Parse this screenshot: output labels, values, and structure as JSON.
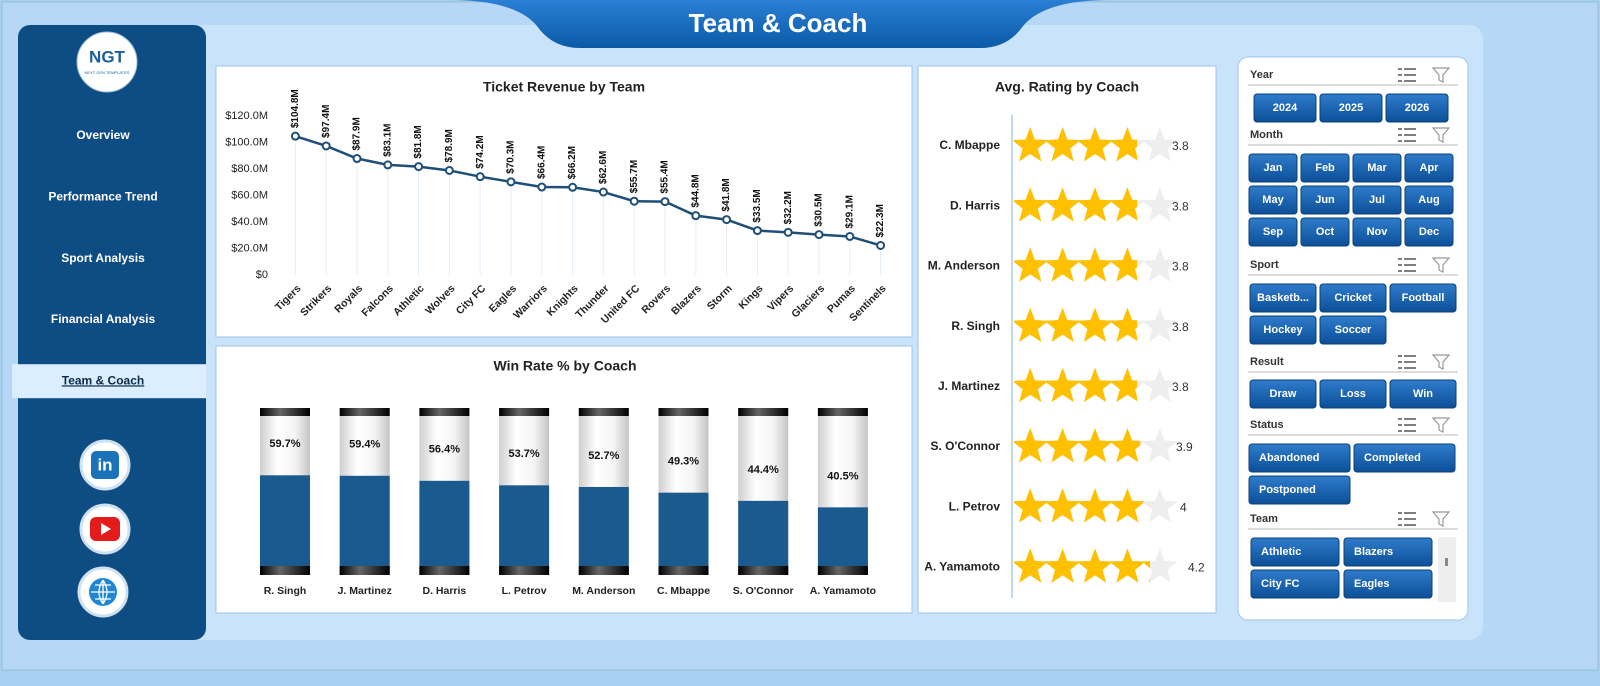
{
  "header": {
    "title": "Team & Coach"
  },
  "logo": {
    "text": "NGT",
    "subtext": "NEXT GEN TEMPLATES"
  },
  "nav": {
    "items": [
      "Overview",
      "Performance Trend",
      "Sport Analysis",
      "Financial Analysis",
      "Team & Coach"
    ],
    "active": 4
  },
  "social": {
    "linkedin": "in"
  },
  "chart_data": [
    {
      "type": "line",
      "title": "Ticket Revenue  by Team",
      "categories": [
        "Tigers",
        "Strikers",
        "Royals",
        "Falcons",
        "Athletic",
        "Wolves",
        "City FC",
        "Eagles",
        "Warriors",
        "Knights",
        "Thunder",
        "United FC",
        "Rovers",
        "Blazers",
        "Storm",
        "Kings",
        "Vipers",
        "Glaciers",
        "Pumas",
        "Sentinels"
      ],
      "values": [
        104.8,
        97.4,
        87.9,
        83.1,
        81.8,
        78.9,
        74.2,
        70.3,
        66.4,
        66.2,
        62.6,
        55.7,
        55.4,
        44.8,
        41.8,
        33.5,
        32.2,
        30.5,
        29.1,
        22.3
      ],
      "value_labels": [
        "$104.8M",
        "$97.4M",
        "$87.9M",
        "$83.1M",
        "$81.8M",
        "$78.9M",
        "$74.2M",
        "$70.3M",
        "$66.4M",
        "$66.2M",
        "$62.6M",
        "$55.7M",
        "$55.4M",
        "$44.8M",
        "$41.8M",
        "$33.5M",
        "$32.2M",
        "$30.5M",
        "$29.1M",
        "$22.3M"
      ],
      "color": "#1f4e79",
      "ylim": [
        0,
        120
      ],
      "yticks": [
        {
          "value": 0,
          "label": "$0"
        },
        {
          "value": 20,
          "label": "$20.0M"
        },
        {
          "value": 40,
          "label": "$40.0M"
        },
        {
          "value": 60,
          "label": "$60.0M"
        },
        {
          "value": 80,
          "label": "$80.0M"
        },
        {
          "value": 100,
          "label": "$100.0M"
        },
        {
          "value": 120,
          "label": "$120.0M"
        }
      ]
    },
    {
      "type": "bar",
      "title": "Win Rate % by Coach",
      "categories": [
        "R. Singh",
        "J. Martinez",
        "D. Harris",
        "L. Petrov",
        "M. Anderson",
        "C. Mbappe",
        "S. O'Connor",
        "A. Yamamoto"
      ],
      "values": [
        59.7,
        59.4,
        56.4,
        53.7,
        52.7,
        49.3,
        44.4,
        40.5
      ],
      "value_labels": [
        "59.7%",
        "59.4%",
        "56.4%",
        "53.7%",
        "52.7%",
        "49.3%",
        "44.4%",
        "40.5%"
      ],
      "color": "#1b5a8e",
      "ylim": [
        0,
        100
      ]
    },
    {
      "type": "rating",
      "title": "Avg. Rating by Coach",
      "categories": [
        "C. Mbappe",
        "D. Harris",
        "M. Anderson",
        "R. Singh",
        "J. Martinez",
        "S. O'Connor",
        "L. Petrov",
        "A. Yamamoto"
      ],
      "values": [
        3.8,
        3.8,
        3.8,
        3.8,
        3.8,
        3.9,
        4.0,
        4.2
      ],
      "color": "#ffc000",
      "xlim": [
        0,
        5
      ]
    }
  ],
  "slicers": [
    {
      "title": "Year",
      "items": [
        "2024",
        "2025",
        "2026"
      ]
    },
    {
      "title": "Month",
      "items": [
        "Jan",
        "Feb",
        "Mar",
        "Apr",
        "May",
        "Jun",
        "Jul",
        "Aug",
        "Sep",
        "Oct",
        "Nov",
        "Dec"
      ]
    },
    {
      "title": "Sport",
      "items": [
        "Basketb...",
        "Cricket",
        "Football",
        "Hockey",
        "Soccer"
      ]
    },
    {
      "title": "Result",
      "items": [
        "Draw",
        "Loss",
        "Win"
      ]
    },
    {
      "title": "Status",
      "items": [
        "Abandoned",
        "Completed",
        "Postponed"
      ]
    },
    {
      "title": "Team",
      "items": [
        "Athletic",
        "Blazers",
        "City FC",
        "Eagles"
      ]
    }
  ]
}
